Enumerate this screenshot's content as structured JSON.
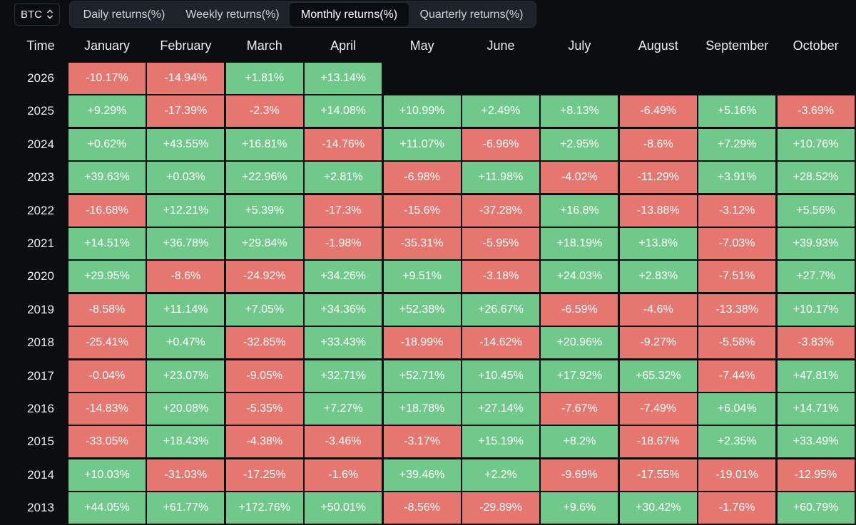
{
  "asset_selector": {
    "value": "BTC",
    "icon": "chevron-up-down-icon"
  },
  "tabs": [
    {
      "label": "Daily returns(%)",
      "active": false
    },
    {
      "label": "Weekly returns(%)",
      "active": false
    },
    {
      "label": "Monthly returns(%)",
      "active": true
    },
    {
      "label": "Quarterly returns(%)",
      "active": false
    }
  ],
  "table": {
    "time_header": "Time",
    "months": [
      "January",
      "February",
      "March",
      "April",
      "May",
      "June",
      "July",
      "August",
      "September",
      "October"
    ],
    "colors": {
      "positive": "#70c98b",
      "negative": "#e67670"
    },
    "rows": [
      {
        "year": "2026",
        "values": [
          "-10.17%",
          "-14.94%",
          "+1.81%",
          "+13.14%"
        ]
      },
      {
        "year": "2025",
        "values": [
          "+9.29%",
          "-17.39%",
          "-2.3%",
          "+14.08%",
          "+10.99%",
          "+2.49%",
          "+8.13%",
          "-6.49%",
          "+5.16%",
          "-3.69%"
        ]
      },
      {
        "year": "2024",
        "values": [
          "+0.62%",
          "+43.55%",
          "+16.81%",
          "-14.76%",
          "+11.07%",
          "-6.96%",
          "+2.95%",
          "-8.6%",
          "+7.29%",
          "+10.76%"
        ]
      },
      {
        "year": "2023",
        "values": [
          "+39.63%",
          "+0.03%",
          "+22.96%",
          "+2.81%",
          "-6.98%",
          "+11.98%",
          "-4.02%",
          "-11.29%",
          "+3.91%",
          "+28.52%"
        ]
      },
      {
        "year": "2022",
        "values": [
          "-16.68%",
          "+12.21%",
          "+5.39%",
          "-17.3%",
          "-15.6%",
          "-37.28%",
          "+16.8%",
          "-13.88%",
          "-3.12%",
          "+5.56%"
        ]
      },
      {
        "year": "2021",
        "values": [
          "+14.51%",
          "+36.78%",
          "+29.84%",
          "-1.98%",
          "-35.31%",
          "-5.95%",
          "+18.19%",
          "+13.8%",
          "-7.03%",
          "+39.93%"
        ]
      },
      {
        "year": "2020",
        "values": [
          "+29.95%",
          "-8.6%",
          "-24.92%",
          "+34.26%",
          "+9.51%",
          "-3.18%",
          "+24.03%",
          "+2.83%",
          "-7.51%",
          "+27.7%"
        ]
      },
      {
        "year": "2019",
        "values": [
          "-8.58%",
          "+11.14%",
          "+7.05%",
          "+34.36%",
          "+52.38%",
          "+26.67%",
          "-6.59%",
          "-4.6%",
          "-13.38%",
          "+10.17%"
        ]
      },
      {
        "year": "2018",
        "values": [
          "-25.41%",
          "+0.47%",
          "-32.85%",
          "+33.43%",
          "-18.99%",
          "-14.62%",
          "+20.96%",
          "-9.27%",
          "-5.58%",
          "-3.83%"
        ]
      },
      {
        "year": "2017",
        "values": [
          "-0.04%",
          "+23.07%",
          "-9.05%",
          "+32.71%",
          "+52.71%",
          "+10.45%",
          "+17.92%",
          "+65.32%",
          "-7.44%",
          "+47.81%"
        ]
      },
      {
        "year": "2016",
        "values": [
          "-14.83%",
          "+20.08%",
          "-5.35%",
          "+7.27%",
          "+18.78%",
          "+27.14%",
          "-7.67%",
          "-7.49%",
          "+6.04%",
          "+14.71%"
        ]
      },
      {
        "year": "2015",
        "values": [
          "-33.05%",
          "+18.43%",
          "-4.38%",
          "-3.46%",
          "-3.17%",
          "+15.19%",
          "+8.2%",
          "-18.67%",
          "+2.35%",
          "+33.49%"
        ]
      },
      {
        "year": "2014",
        "values": [
          "+10.03%",
          "-31.03%",
          "-17.25%",
          "-1.6%",
          "+39.46%",
          "+2.2%",
          "-9.69%",
          "-17.55%",
          "-19.01%",
          "-12.95%"
        ]
      },
      {
        "year": "2013",
        "values": [
          "+44.05%",
          "+61.77%",
          "+172.76%",
          "+50.01%",
          "-8.56%",
          "-29.89%",
          "+9.6%",
          "+30.42%",
          "-1.76%",
          "+60.79%"
        ]
      }
    ]
  }
}
